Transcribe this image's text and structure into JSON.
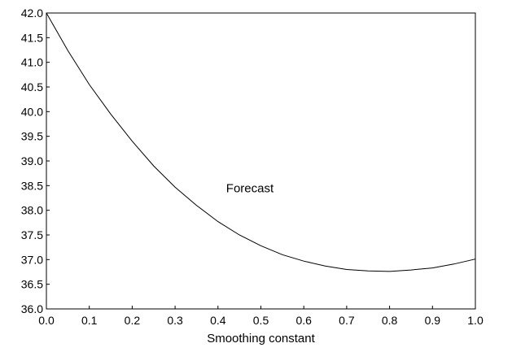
{
  "chart_data": {
    "type": "line",
    "title": "",
    "xlabel": "Smoothing constant",
    "ylabel": "",
    "xlim": [
      0.0,
      1.0
    ],
    "ylim": [
      36.0,
      42.0
    ],
    "grid": false,
    "legend": "none",
    "x_ticks": [
      "0.0",
      "0.1",
      "0.2",
      "0.3",
      "0.4",
      "0.5",
      "0.6",
      "0.7",
      "0.8",
      "0.9",
      "1.0"
    ],
    "y_ticks": [
      "36.0",
      "36.5",
      "37.0",
      "37.5",
      "38.0",
      "38.5",
      "39.0",
      "39.5",
      "40.0",
      "40.5",
      "41.0",
      "41.5",
      "42.0"
    ],
    "annotations": [
      {
        "text": "Forecast",
        "x": 0.4,
        "y": 38.45
      }
    ],
    "series": [
      {
        "color": "#000000",
        "x": [
          0.0,
          0.05,
          0.1,
          0.15,
          0.2,
          0.25,
          0.3,
          0.35,
          0.4,
          0.45,
          0.5,
          0.55,
          0.6,
          0.65,
          0.7,
          0.75,
          0.8,
          0.85,
          0.9,
          0.95,
          1.0
        ],
        "y": [
          42.0,
          41.24,
          40.55,
          39.95,
          39.4,
          38.9,
          38.47,
          38.1,
          37.77,
          37.5,
          37.28,
          37.1,
          36.97,
          36.87,
          36.8,
          36.77,
          36.76,
          36.79,
          36.83,
          36.91,
          37.01
        ]
      }
    ]
  }
}
